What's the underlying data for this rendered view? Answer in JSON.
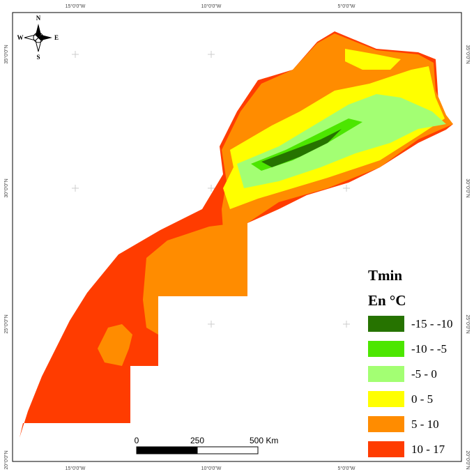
{
  "map": {
    "graticule": {
      "longitudes": [
        "15°0'0\"W",
        "10°0'0\"W",
        "5°0'0\"W"
      ],
      "latitudes": [
        "35°0'0\"N",
        "30°0'0\"N",
        "25°0'0\"N",
        "20°0'0\"N"
      ]
    },
    "compass": {
      "north": "N",
      "south": "S",
      "east": "E",
      "west": "W"
    },
    "legend": {
      "title": "Tmin",
      "subtitle": "En °C",
      "classes": [
        {
          "label": "-15 - -10",
          "color": "#267300"
        },
        {
          "label": "-10 - -5",
          "color": "#4ce600"
        },
        {
          "label": "-5 - 0",
          "color": "#a3ff73"
        },
        {
          "label": "0 - 5",
          "color": "#ffff00"
        },
        {
          "label": "5 - 10",
          "color": "#ff8c00"
        },
        {
          "label": "10 - 17",
          "color": "#ff3c00"
        }
      ]
    },
    "scale_bar": {
      "labels": [
        "0",
        "250",
        "500 Km"
      ]
    }
  }
}
